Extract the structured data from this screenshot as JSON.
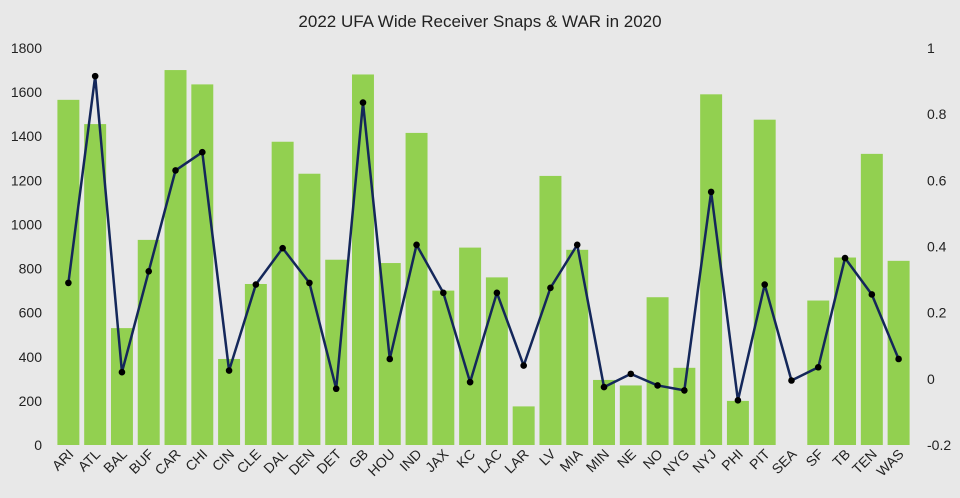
{
  "chart_data": {
    "type": "bar+line",
    "title": "2022 UFA Wide Receiver Snaps & WAR in 2020",
    "categories": [
      "ARI",
      "ATL",
      "BAL",
      "BUF",
      "CAR",
      "CHI",
      "CIN",
      "CLE",
      "DAL",
      "DEN",
      "DET",
      "GB",
      "HOU",
      "IND",
      "JAX",
      "KC",
      "LAC",
      "LAR",
      "LV",
      "MIA",
      "MIN",
      "NE",
      "NO",
      "NYG",
      "NYJ",
      "PHI",
      "PIT",
      "SEA",
      "SF",
      "TB",
      "TEN",
      "WAS"
    ],
    "series": [
      {
        "axis": "left",
        "type": "bar",
        "color": "#92d050",
        "values": [
          1565,
          1455,
          530,
          930,
          1700,
          1635,
          390,
          730,
          1375,
          1230,
          840,
          1680,
          825,
          1415,
          700,
          895,
          760,
          175,
          1220,
          885,
          295,
          270,
          670,
          350,
          1590,
          200,
          1475,
          0,
          655,
          850,
          1320,
          835
        ]
      },
      {
        "axis": "right",
        "type": "line",
        "color": "#14275a",
        "marker_color": "#000000",
        "values": [
          0.29,
          0.915,
          0.02,
          0.325,
          0.63,
          0.685,
          0.025,
          0.285,
          0.395,
          0.29,
          -0.03,
          0.835,
          0.06,
          0.405,
          0.26,
          -0.01,
          0.26,
          0.04,
          0.275,
          0.405,
          -0.025,
          0.015,
          -0.02,
          -0.035,
          0.565,
          -0.065,
          0.285,
          -0.005,
          0.035,
          0.365,
          0.255,
          0.06
        ]
      }
    ],
    "y_left": {
      "min": 0,
      "max": 1800,
      "ticks": [
        "0",
        "200",
        "400",
        "600",
        "800",
        "1000",
        "1200",
        "1400",
        "1600",
        "1800"
      ]
    },
    "y_right": {
      "min": -0.2,
      "max": 1,
      "ticks": [
        "-0.2",
        "0",
        "0.2",
        "0.4",
        "0.6",
        "0.8",
        "1"
      ]
    },
    "grid": false,
    "legend": "none"
  }
}
